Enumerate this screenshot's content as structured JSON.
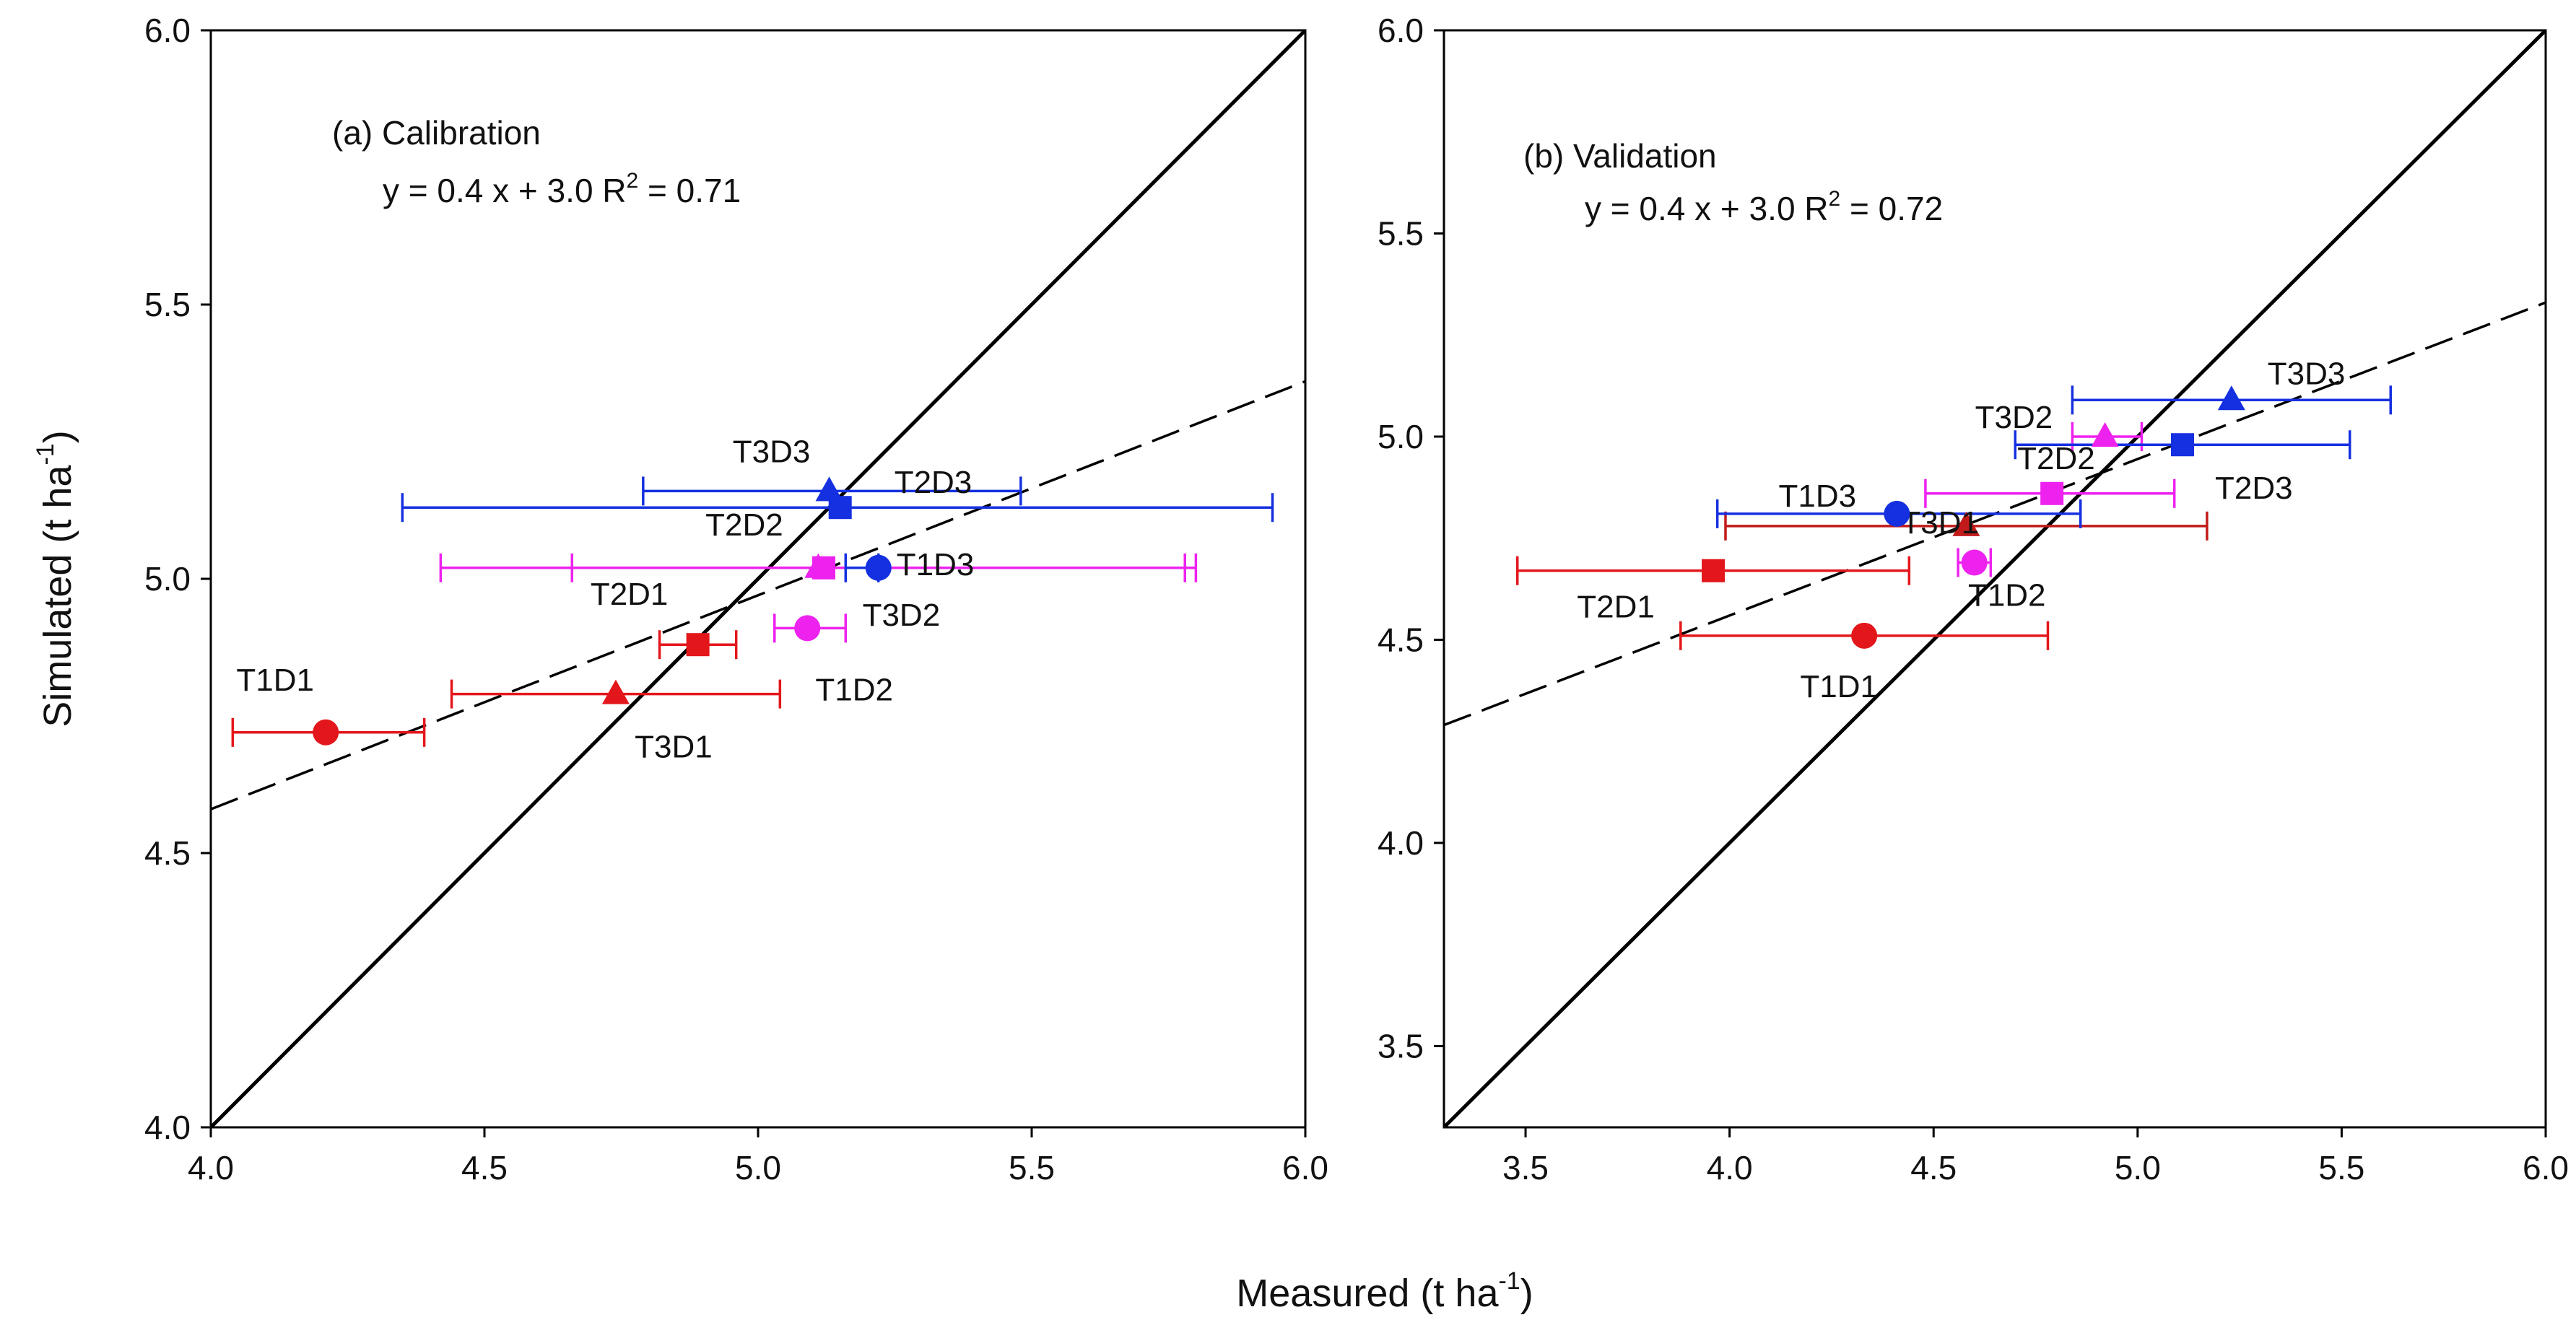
{
  "chart_data": {
    "type": "scatter",
    "xlabel": "Measured (t ha",
    "ylabel": "Simulated (t ha",
    "unit_exponent": "-1",
    "unit_close": ")",
    "colors": {
      "red": "#e3171b",
      "blue": "#1530e0",
      "magenta": "#ee22ee",
      "darkred": "#c21a1a",
      "line": "#000000"
    },
    "panels": [
      {
        "id": "calibration",
        "title": "(a) Calibration",
        "equation": "y = 0.4 x + 3.0  R",
        "r2_sup": "2",
        "r2_value": " = 0.71",
        "xlim": [
          4.0,
          6.0
        ],
        "ylim": [
          4.0,
          6.0
        ],
        "xticks": [
          4.0,
          4.5,
          5.0,
          5.5,
          6.0
        ],
        "yticks": [
          4.0,
          4.5,
          5.0,
          5.5,
          6.0
        ],
        "xtick_labels": [
          "4.0",
          "4.5",
          "5.0",
          "5.5",
          "6.0"
        ],
        "ytick_labels": [
          "4.0",
          "4.5",
          "5.0",
          "5.5",
          "6.0"
        ],
        "one_to_one": [
          [
            4.0,
            4.0
          ],
          [
            6.0,
            6.0
          ]
        ],
        "regression": [
          [
            4.0,
            4.58
          ],
          [
            6.0,
            5.36
          ]
        ],
        "points": [
          {
            "label": "T1D1",
            "x": 4.21,
            "y": 4.72,
            "xerr": [
              4.04,
              4.39
            ],
            "marker": "circle",
            "color": "red"
          },
          {
            "label": "T3D1",
            "x": 4.74,
            "y": 4.79,
            "xerr": [
              4.44,
              5.04
            ],
            "marker": "triangle",
            "color": "red"
          },
          {
            "label": "T2D1",
            "x": 4.89,
            "y": 4.88,
            "xerr": [
              4.82,
              4.96
            ],
            "marker": "square",
            "color": "red"
          },
          {
            "label": "T1D2",
            "x": 5.09,
            "y": 4.91,
            "xerr": [
              5.03,
              5.16
            ],
            "marker": "circle",
            "color": "magenta"
          },
          {
            "label": "T3D2",
            "x": 5.11,
            "y": 5.02,
            "xerr": [
              4.42,
              5.8
            ],
            "marker": "triangle",
            "color": "magenta"
          },
          {
            "label": "T2D2",
            "x": 5.12,
            "y": 5.02,
            "xerr": [
              4.66,
              5.78
            ],
            "marker": "square",
            "color": "magenta"
          },
          {
            "label": "T1D3",
            "x": 5.22,
            "y": 5.02,
            "xerr": [
              5.16,
              5.22
            ],
            "marker": "circle",
            "color": "blue"
          },
          {
            "label": "T3D3",
            "x": 5.13,
            "y": 5.16,
            "xerr": [
              4.79,
              5.48
            ],
            "marker": "triangle",
            "color": "blue"
          },
          {
            "label": "T2D3",
            "x": 5.15,
            "y": 5.13,
            "xerr": [
              4.35,
              5.94
            ],
            "marker": "square",
            "color": "blue"
          }
        ]
      },
      {
        "id": "validation",
        "title": "(b) Validation",
        "equation": "y = 0.4 x + 3.0  R",
        "r2_sup": "2",
        "r2_value": " = 0.72",
        "xlim": [
          3.3,
          6.0
        ],
        "ylim": [
          3.3,
          6.0
        ],
        "xticks": [
          3.5,
          4.0,
          4.5,
          5.0,
          5.5,
          6.0
        ],
        "yticks": [
          3.5,
          4.0,
          4.5,
          5.0,
          5.5,
          6.0
        ],
        "xtick_labels": [
          "3.5",
          "4.0",
          "4.5",
          "5.0",
          "5.5",
          "6.0"
        ],
        "ytick_labels": [
          "3.5",
          "4.0",
          "4.5",
          "5.0",
          "5.5",
          "6.0"
        ],
        "one_to_one": [
          [
            3.3,
            3.3
          ],
          [
            6.0,
            6.0
          ]
        ],
        "regression": [
          [
            3.3,
            4.29
          ],
          [
            6.0,
            5.33
          ]
        ],
        "points": [
          {
            "label": "T1D1",
            "x": 4.33,
            "y": 4.51,
            "xerr": [
              3.88,
              4.78
            ],
            "marker": "circle",
            "color": "red"
          },
          {
            "label": "T2D1",
            "x": 3.96,
            "y": 4.67,
            "xerr": [
              3.48,
              4.44
            ],
            "marker": "square",
            "color": "red"
          },
          {
            "label": "T3D1",
            "x": 4.58,
            "y": 4.78,
            "xerr": [
              3.99,
              5.17
            ],
            "marker": "triangle",
            "color": "darkred"
          },
          {
            "label": "T1D2",
            "x": 4.6,
            "y": 4.69,
            "xerr": [
              4.56,
              4.64
            ],
            "marker": "circle",
            "color": "magenta"
          },
          {
            "label": "T2D2",
            "x": 4.79,
            "y": 4.86,
            "xerr": [
              4.48,
              5.09
            ],
            "marker": "square",
            "color": "magenta"
          },
          {
            "label": "T3D2",
            "x": 4.92,
            "y": 5.0,
            "xerr": [
              4.84,
              5.01
            ],
            "marker": "triangle",
            "color": "magenta"
          },
          {
            "label": "T1D3",
            "x": 4.41,
            "y": 4.81,
            "xerr": [
              3.97,
              4.86
            ],
            "marker": "circle",
            "color": "blue"
          },
          {
            "label": "T2D3",
            "x": 5.11,
            "y": 4.98,
            "xerr": [
              4.7,
              5.52
            ],
            "marker": "square",
            "color": "blue"
          },
          {
            "label": "T3D3",
            "x": 5.23,
            "y": 5.09,
            "xerr": [
              4.84,
              5.62
            ],
            "marker": "triangle",
            "color": "blue"
          }
        ]
      }
    ]
  }
}
